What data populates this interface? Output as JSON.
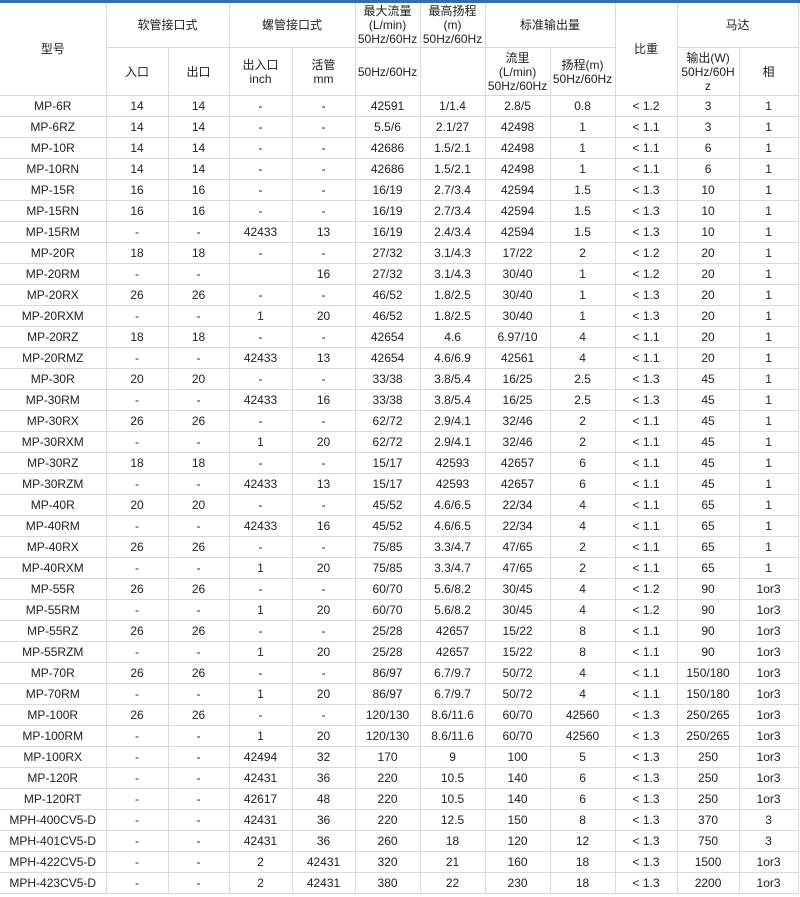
{
  "colors": {
    "top_bar": "#2f6db5",
    "border": "#d9d9d9"
  },
  "header": {
    "model": "型号",
    "hose": "软管接口式",
    "hose_in": "入口",
    "hose_out": "出口",
    "thread": "螺管接口式",
    "thread_inout": "出入口",
    "thread_inout_unit": "inch",
    "thread_union": "活管",
    "thread_union_unit": "mm",
    "max_flow": "最大流量",
    "max_flow_unit": "(L/min)",
    "max_flow_hz": "50Hz/60Hz",
    "max_flow_sub": "50Hz/60Hz",
    "max_head": "最高扬程",
    "max_head_unit": "(m)",
    "max_head_hz": "50Hz/60Hz",
    "std_output": "标准输出量",
    "std_flow": "流里",
    "std_flow_unit": "(L/min)",
    "std_flow_hz": "50Hz/60Hz",
    "std_head": "扬程(m)",
    "std_head_hz": "50Hz/60Hz",
    "specific_gravity": "比重",
    "motor": "马达",
    "motor_output": "输出(W)",
    "motor_output_hz": "50Hz/60H",
    "motor_output_hz2": "z",
    "motor_phase": "相"
  },
  "rows": [
    [
      "MP-6R",
      "14",
      "14",
      "-",
      "-",
      "42591",
      "1/1.4",
      "2.8/5",
      "0.8",
      "< 1.2",
      "3",
      "1"
    ],
    [
      "MP-6RZ",
      "14",
      "14",
      "-",
      "-",
      "5.5/6",
      "2.1/27",
      "42498",
      "1",
      "< 1.1",
      "3",
      "1"
    ],
    [
      "MP-10R",
      "14",
      "14",
      "-",
      "-",
      "42686",
      "1.5/2.1",
      "42498",
      "1",
      "< 1.1",
      "6",
      "1"
    ],
    [
      "MP-10RN",
      "14",
      "14",
      "-",
      "-",
      "42686",
      "1.5/2.1",
      "42498",
      "1",
      "< 1.1",
      "6",
      "1"
    ],
    [
      "MP-15R",
      "16",
      "16",
      "-",
      "-",
      "16/19",
      "2.7/3.4",
      "42594",
      "1.5",
      "< 1.3",
      "10",
      "1"
    ],
    [
      "MP-15RN",
      "16",
      "16",
      "-",
      "-",
      "16/19",
      "2.7/3.4",
      "42594",
      "1.5",
      "< 1.3",
      "10",
      "1"
    ],
    [
      "MP-15RM",
      "-",
      "-",
      "42433",
      "13",
      "16/19",
      "2.4/3.4",
      "42594",
      "1.5",
      "< 1.3",
      "10",
      "1"
    ],
    [
      "MP-20R",
      "18",
      "18",
      "-",
      "-",
      "27/32",
      "3.1/4.3",
      "17/22",
      "2",
      "< 1.2",
      "20",
      "1"
    ],
    [
      "MP-20RM",
      "-",
      "-",
      "",
      "16",
      "27/32",
      "3.1/4.3",
      "30/40",
      "1",
      "< 1.2",
      "20",
      "1"
    ],
    [
      "MP-20RX",
      "26",
      "26",
      "-",
      "-",
      "46/52",
      "1.8/2.5",
      "30/40",
      "1",
      "< 1.3",
      "20",
      "1"
    ],
    [
      "MP-20RXM",
      "-",
      "-",
      "1",
      "20",
      "46/52",
      "1.8/2.5",
      "30/40",
      "1",
      "< 1.3",
      "20",
      "1"
    ],
    [
      "MP-20RZ",
      "18",
      "18",
      "-",
      "-",
      "42654",
      "4.6",
      "6.97/10",
      "4",
      "< 1.1",
      "20",
      "1"
    ],
    [
      "MP-20RMZ",
      "-",
      "-",
      "42433",
      "13",
      "42654",
      "4.6/6.9",
      "42561",
      "4",
      "< 1.1",
      "20",
      "1"
    ],
    [
      "MP-30R",
      "20",
      "20",
      "-",
      "-",
      "33/38",
      "3.8/5.4",
      "16/25",
      "2.5",
      "< 1.3",
      "45",
      "1"
    ],
    [
      "MP-30RM",
      "-",
      "-",
      "42433",
      "16",
      "33/38",
      "3.8/5.4",
      "16/25",
      "2.5",
      "< 1.3",
      "45",
      "1"
    ],
    [
      "MP-30RX",
      "26",
      "26",
      "-",
      "-",
      "62/72",
      "2.9/4.1",
      "32/46",
      "2",
      "< 1.1",
      "45",
      "1"
    ],
    [
      "MP-30RXM",
      "-",
      "-",
      "1",
      "20",
      "62/72",
      "2.9/4.1",
      "32/46",
      "2",
      "< 1.1",
      "45",
      "1"
    ],
    [
      "MP-30RZ",
      "18",
      "18",
      "-",
      "-",
      "15/17",
      "42593",
      "42657",
      "6",
      "< 1.1",
      "45",
      "1"
    ],
    [
      "MP-30RZM",
      "-",
      "-",
      "42433",
      "13",
      "15/17",
      "42593",
      "42657",
      "6",
      "< 1.1",
      "45",
      "1"
    ],
    [
      "MP-40R",
      "20",
      "20",
      "-",
      "-",
      "45/52",
      "4.6/6.5",
      "22/34",
      "4",
      "< 1.1",
      "65",
      "1"
    ],
    [
      "MP-40RM",
      "-",
      "-",
      "42433",
      "16",
      "45/52",
      "4.6/6.5",
      "22/34",
      "4",
      "< 1.1",
      "65",
      "1"
    ],
    [
      "MP-40RX",
      "26",
      "26",
      "-",
      "-",
      "75/85",
      "3.3/4.7",
      "47/65",
      "2",
      "< 1.1",
      "65",
      "1"
    ],
    [
      "MP-40RXM",
      "-",
      "-",
      "1",
      "20",
      "75/85",
      "3.3/4.7",
      "47/65",
      "2",
      "< 1.1",
      "65",
      "1"
    ],
    [
      "MP-55R",
      "26",
      "26",
      "-",
      "-",
      "60/70",
      "5.6/8.2",
      "30/45",
      "4",
      "< 1.2",
      "90",
      "1or3"
    ],
    [
      "MP-55RM",
      "-",
      "-",
      "1",
      "20",
      "60/70",
      "5.6/8.2",
      "30/45",
      "4",
      "< 1.2",
      "90",
      "1or3"
    ],
    [
      "MP-55RZ",
      "26",
      "26",
      "-",
      "-",
      "25/28",
      "42657",
      "15/22",
      "8",
      "< 1.1",
      "90",
      "1or3"
    ],
    [
      "MP-55RZM",
      "-",
      "-",
      "1",
      "20",
      "25/28",
      "42657",
      "15/22",
      "8",
      "< 1.1",
      "90",
      "1or3"
    ],
    [
      "MP-70R",
      "26",
      "26",
      "-",
      "-",
      "86/97",
      "6.7/9.7",
      "50/72",
      "4",
      "< 1.1",
      "150/180",
      "1or3"
    ],
    [
      "MP-70RM",
      "-",
      "-",
      "1",
      "20",
      "86/97",
      "6.7/9.7",
      "50/72",
      "4",
      "< 1.1",
      "150/180",
      "1or3"
    ],
    [
      "MP-100R",
      "26",
      "26",
      "-",
      "-",
      "120/130",
      "8.6/11.6",
      "60/70",
      "42560",
      "< 1.3",
      "250/265",
      "1or3"
    ],
    [
      "MP-100RM",
      "-",
      "-",
      "1",
      "20",
      "120/130",
      "8.6/11.6",
      "60/70",
      "42560",
      "< 1.3",
      "250/265",
      "1or3"
    ],
    [
      "MP-100RX",
      "-",
      "-",
      "42494",
      "32",
      "170",
      "9",
      "100",
      "5",
      "< 1.3",
      "250",
      "1or3"
    ],
    [
      "MP-120R",
      "-",
      "-",
      "42431",
      "36",
      "220",
      "10.5",
      "140",
      "6",
      "< 1.3",
      "250",
      "1or3"
    ],
    [
      "MP-120RT",
      "-",
      "-",
      "42617",
      "48",
      "220",
      "10.5",
      "140",
      "6",
      "< 1.3",
      "250",
      "1or3"
    ],
    [
      "MPH-400CV5-D",
      "-",
      "-",
      "42431",
      "36",
      "220",
      "12.5",
      "150",
      "8",
      "< 1.3",
      "370",
      "3"
    ],
    [
      "MPH-401CV5-D",
      "-",
      "-",
      "42431",
      "36",
      "260",
      "18",
      "120",
      "12",
      "< 1.3",
      "750",
      "3"
    ],
    [
      "MPH-422CV5-D",
      "-",
      "-",
      "2",
      "42431",
      "320",
      "21",
      "160",
      "18",
      "< 1.3",
      "1500",
      "1or3"
    ],
    [
      "MPH-423CV5-D",
      "-",
      "-",
      "2",
      "42431",
      "380",
      "22",
      "230",
      "18",
      "< 1.3",
      "2200",
      "1or3"
    ]
  ]
}
